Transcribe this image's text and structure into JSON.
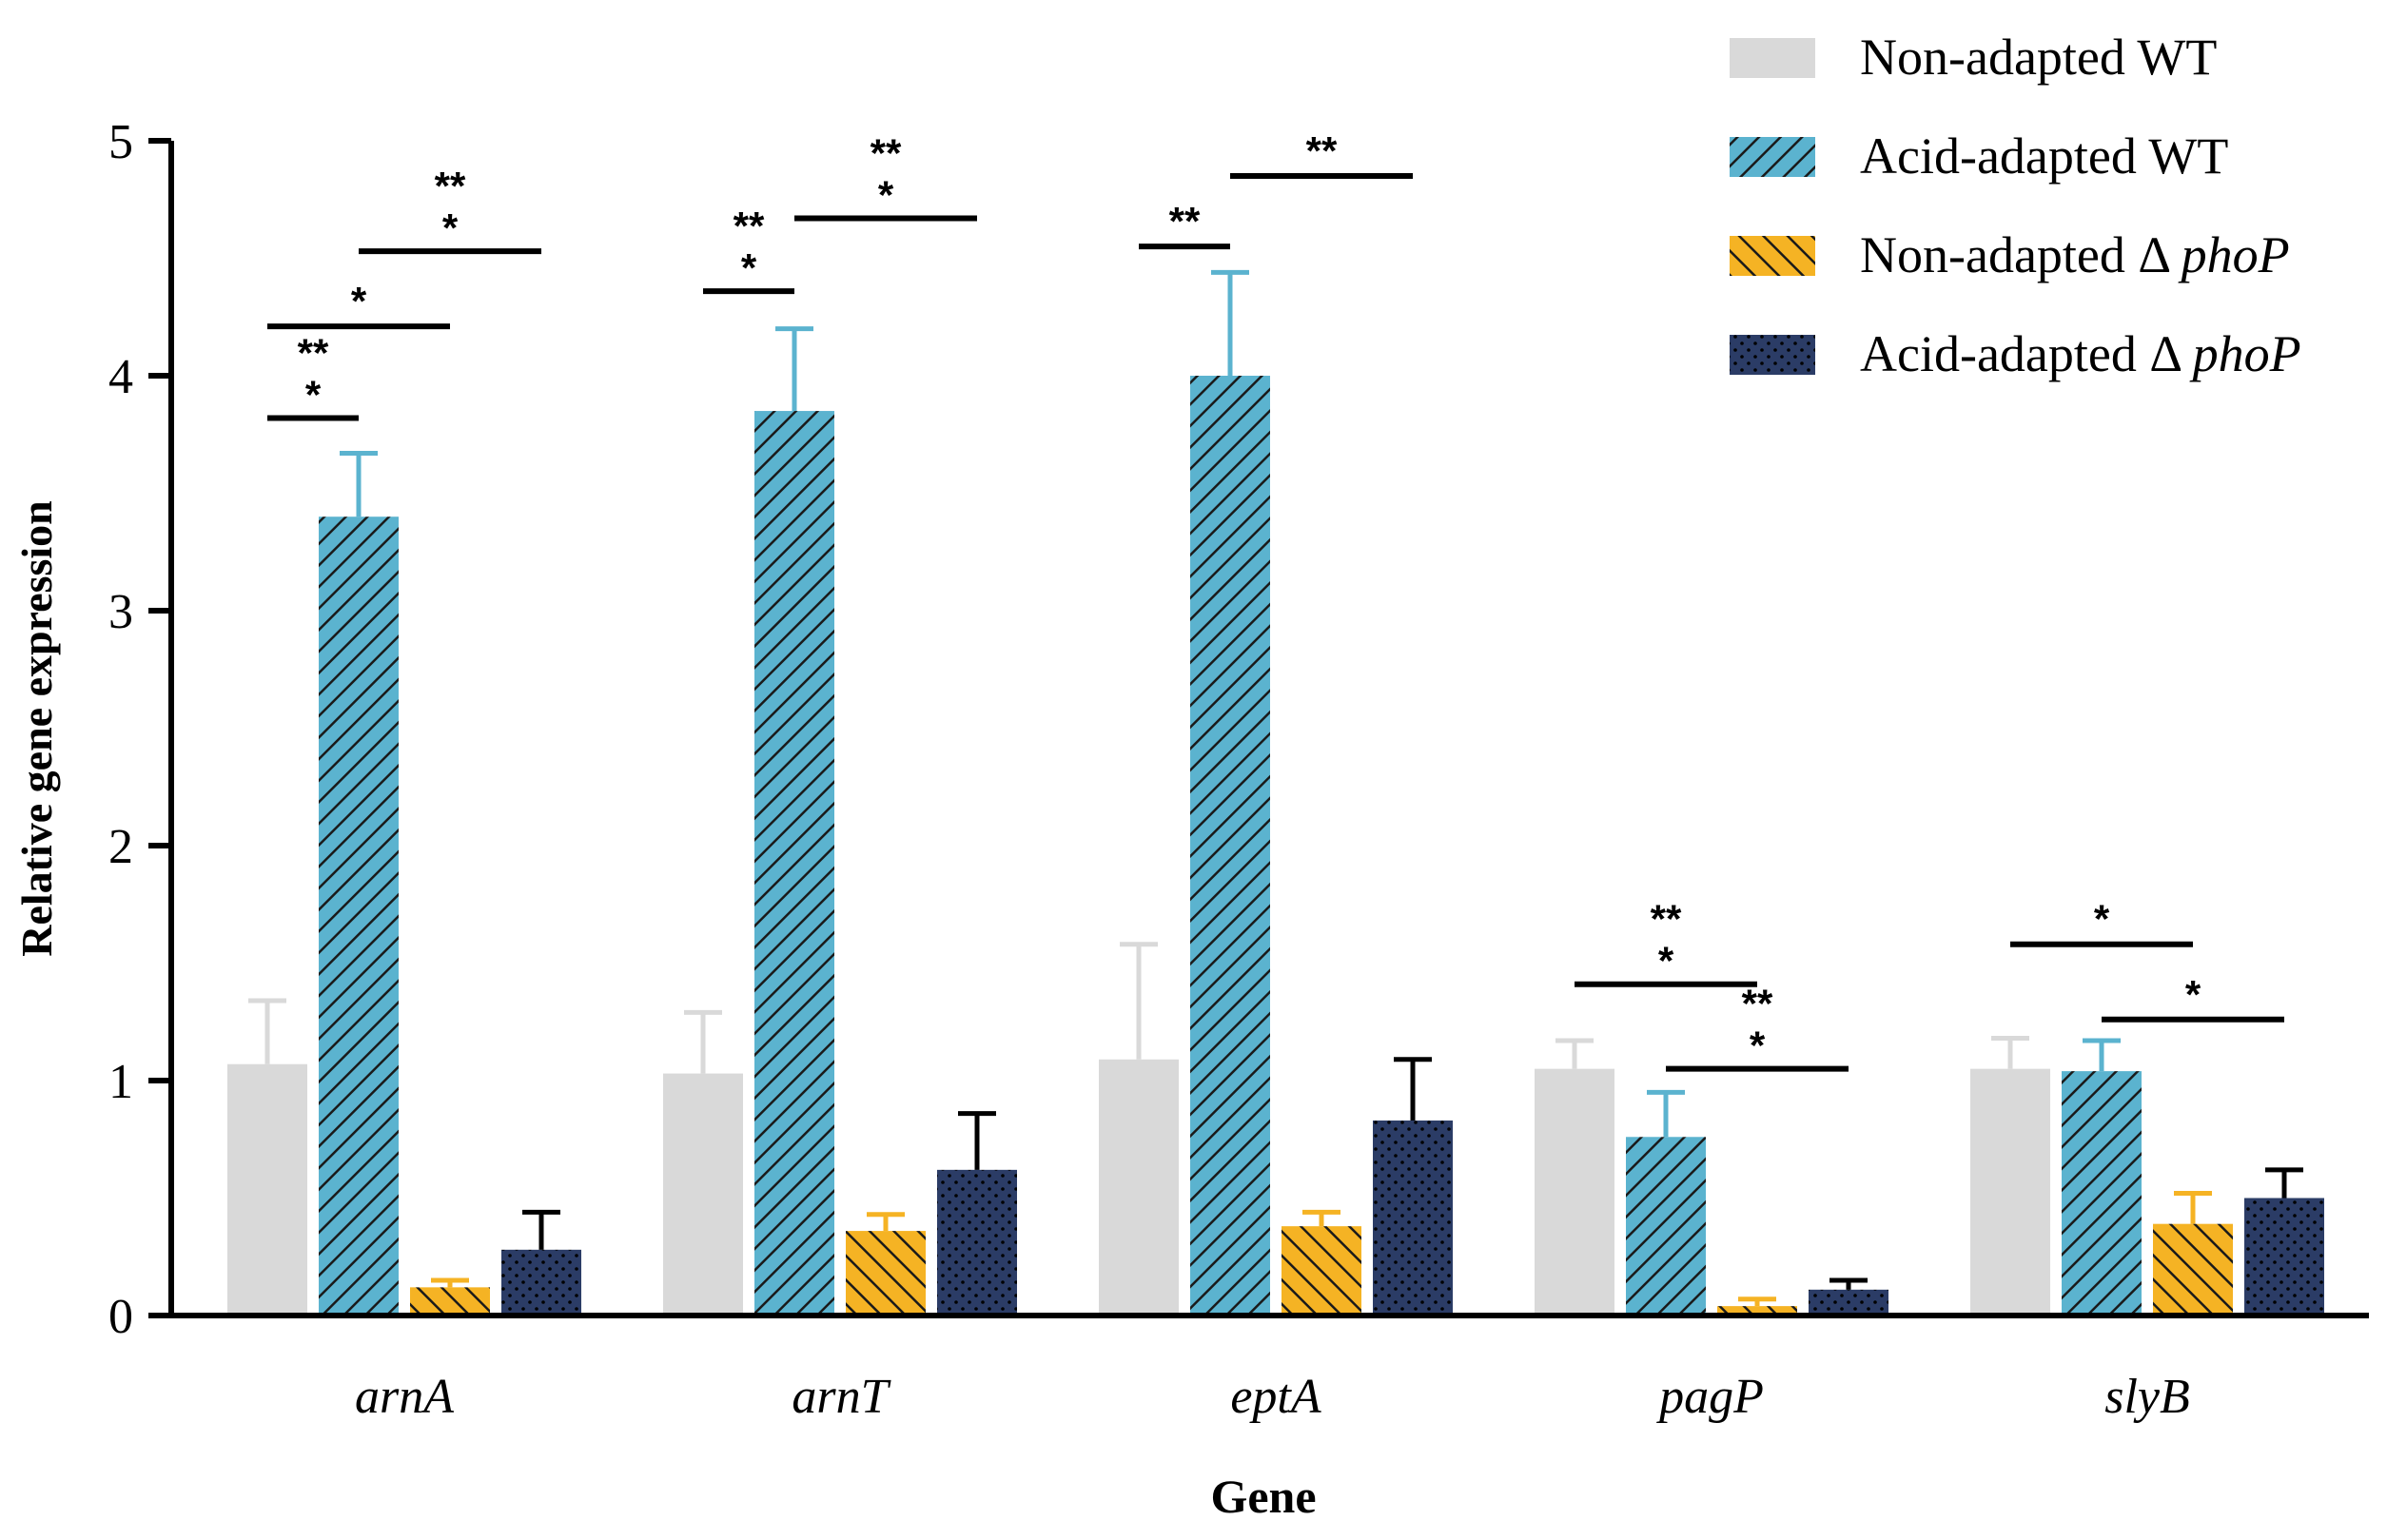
{
  "chart_data": {
    "type": "bar",
    "xlabel": "Gene",
    "ylabel": "Relative gene expression",
    "ylim": [
      0,
      5
    ],
    "yticks": [
      0,
      1,
      2,
      3,
      4,
      5
    ],
    "categories": [
      "arnA",
      "arnT",
      "eptA",
      "pagP",
      "slyB"
    ],
    "legend_position": "top-right",
    "grid": false,
    "series": [
      {
        "name": "Non-adapted WT",
        "values": [
          1.07,
          1.03,
          1.09,
          1.05,
          1.05
        ],
        "errors": [
          0.27,
          0.26,
          0.49,
          0.12,
          0.13
        ],
        "color": "#d9d9d9",
        "pattern": "solid"
      },
      {
        "name": "Acid-adapted WT",
        "values": [
          3.4,
          3.85,
          4.0,
          0.76,
          1.04
        ],
        "errors": [
          0.27,
          0.35,
          0.44,
          0.19,
          0.13
        ],
        "color": "#5bb3cf",
        "pattern": "hatch"
      },
      {
        "name": "Non-adapted Δ phoP",
        "values": [
          0.12,
          0.36,
          0.38,
          0.04,
          0.39
        ],
        "errors": [
          0.03,
          0.07,
          0.06,
          0.03,
          0.13
        ],
        "color": "#f5b324",
        "pattern": "hatch-reverse"
      },
      {
        "name": "Acid-adapted Δ phoP",
        "values": [
          0.28,
          0.62,
          0.83,
          0.11,
          0.5
        ],
        "errors": [
          0.16,
          0.24,
          0.26,
          0.04,
          0.12
        ],
        "color": "#2b3c66",
        "pattern": "dots"
      }
    ],
    "significance": [
      {
        "category": 0,
        "from": 0,
        "to": 1,
        "label": "***",
        "y": 3.82
      },
      {
        "category": 0,
        "from": 0,
        "to": 2,
        "label": "*",
        "y": 4.21
      },
      {
        "category": 0,
        "from": 1,
        "to": 3,
        "label": "***",
        "y": 4.53
      },
      {
        "category": 1,
        "from": 0,
        "to": 1,
        "label": "***",
        "y": 4.36
      },
      {
        "category": 1,
        "from": 1,
        "to": 3,
        "label": "***",
        "y": 4.67
      },
      {
        "category": 2,
        "from": 0,
        "to": 1,
        "label": "**",
        "y": 4.55
      },
      {
        "category": 2,
        "from": 1,
        "to": 3,
        "label": "**",
        "y": 4.85
      },
      {
        "category": 3,
        "from": 0,
        "to": 2,
        "label": "***",
        "y": 1.41
      },
      {
        "category": 3,
        "from": 1,
        "to": 3,
        "label": "***",
        "y": 1.05
      },
      {
        "category": 4,
        "from": 0,
        "to": 2,
        "label": "*",
        "y": 1.58
      },
      {
        "category": 4,
        "from": 1,
        "to": 3,
        "label": "*",
        "y": 1.26
      }
    ]
  }
}
